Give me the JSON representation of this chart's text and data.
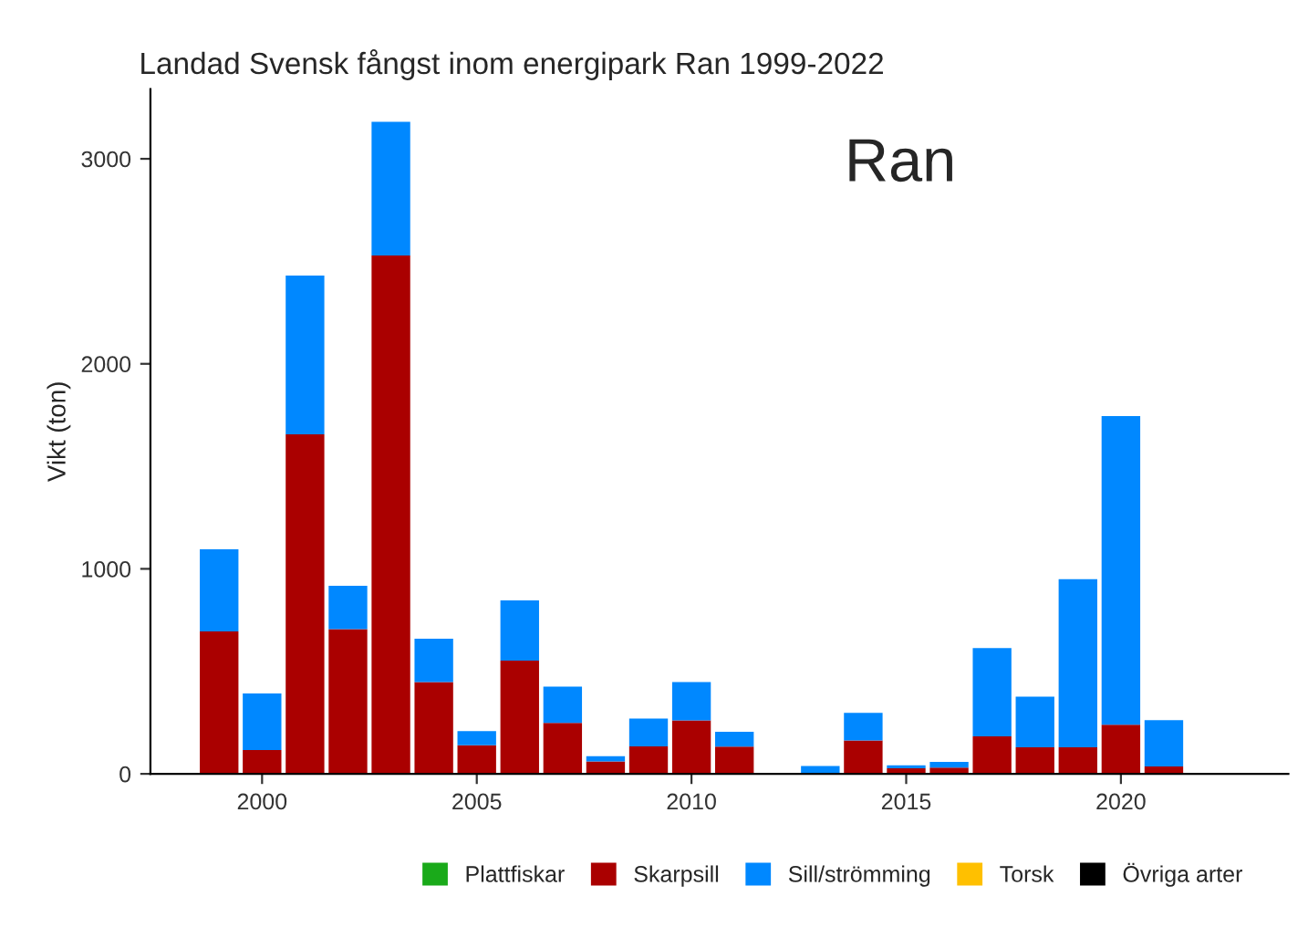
{
  "chart_data": {
    "type": "bar",
    "title": "Landad Svensk fångst inom energipark Ran 1999-2022",
    "ylabel": "Vikt (ton)",
    "x": [
      1999,
      2000,
      2001,
      2002,
      2003,
      2004,
      2005,
      2006,
      2007,
      2008,
      2009,
      2010,
      2011,
      2012,
      2013,
      2014,
      2015,
      2016,
      2017,
      2018,
      2019,
      2020,
      2021
    ],
    "stacked": true,
    "series": [
      {
        "name": "Plattfiskar",
        "color": "#1aaa1a",
        "values": [
          null,
          null,
          null,
          null,
          null,
          null,
          null,
          null,
          null,
          null,
          null,
          null,
          null,
          null,
          null,
          null,
          null,
          null,
          null,
          null,
          null,
          null,
          null
        ]
      },
      {
        "name": "Skarpsill",
        "color": "#aa0000",
        "values": [
          695,
          116,
          1656,
          706,
          2529,
          448,
          140,
          552,
          249,
          60,
          134,
          261,
          133,
          null,
          0,
          163,
          27,
          30,
          183,
          130,
          130,
          240,
          36
        ]
      },
      {
        "name": "Sill/strömming",
        "color": "#0088ff",
        "values": [
          400,
          276,
          775,
          211,
          651,
          211,
          68,
          294,
          176,
          26,
          136,
          187,
          72,
          null,
          38,
          135,
          15,
          28,
          431,
          247,
          820,
          1505,
          226
        ]
      },
      {
        "name": "Torsk",
        "color": "#ffc000",
        "values": [
          null,
          null,
          null,
          null,
          null,
          null,
          null,
          null,
          null,
          null,
          null,
          null,
          null,
          null,
          null,
          null,
          null,
          null,
          null,
          null,
          null,
          null,
          null
        ]
      },
      {
        "name": "Övriga arter",
        "color": "#000000",
        "values": [
          null,
          null,
          null,
          null,
          null,
          null,
          null,
          null,
          null,
          null,
          null,
          null,
          null,
          null,
          null,
          null,
          null,
          null,
          null,
          null,
          null,
          null,
          null
        ]
      }
    ],
    "xlim": [
      1997.4,
      2023.9
    ],
    "xticks": [
      2000,
      2005,
      2010,
      2015,
      2020
    ],
    "ylim": [
      0,
      3340
    ],
    "yticks": [
      0,
      1000,
      2000,
      3000
    ],
    "annotations": [
      "Ran"
    ],
    "grid": false,
    "legend": "bottom"
  }
}
